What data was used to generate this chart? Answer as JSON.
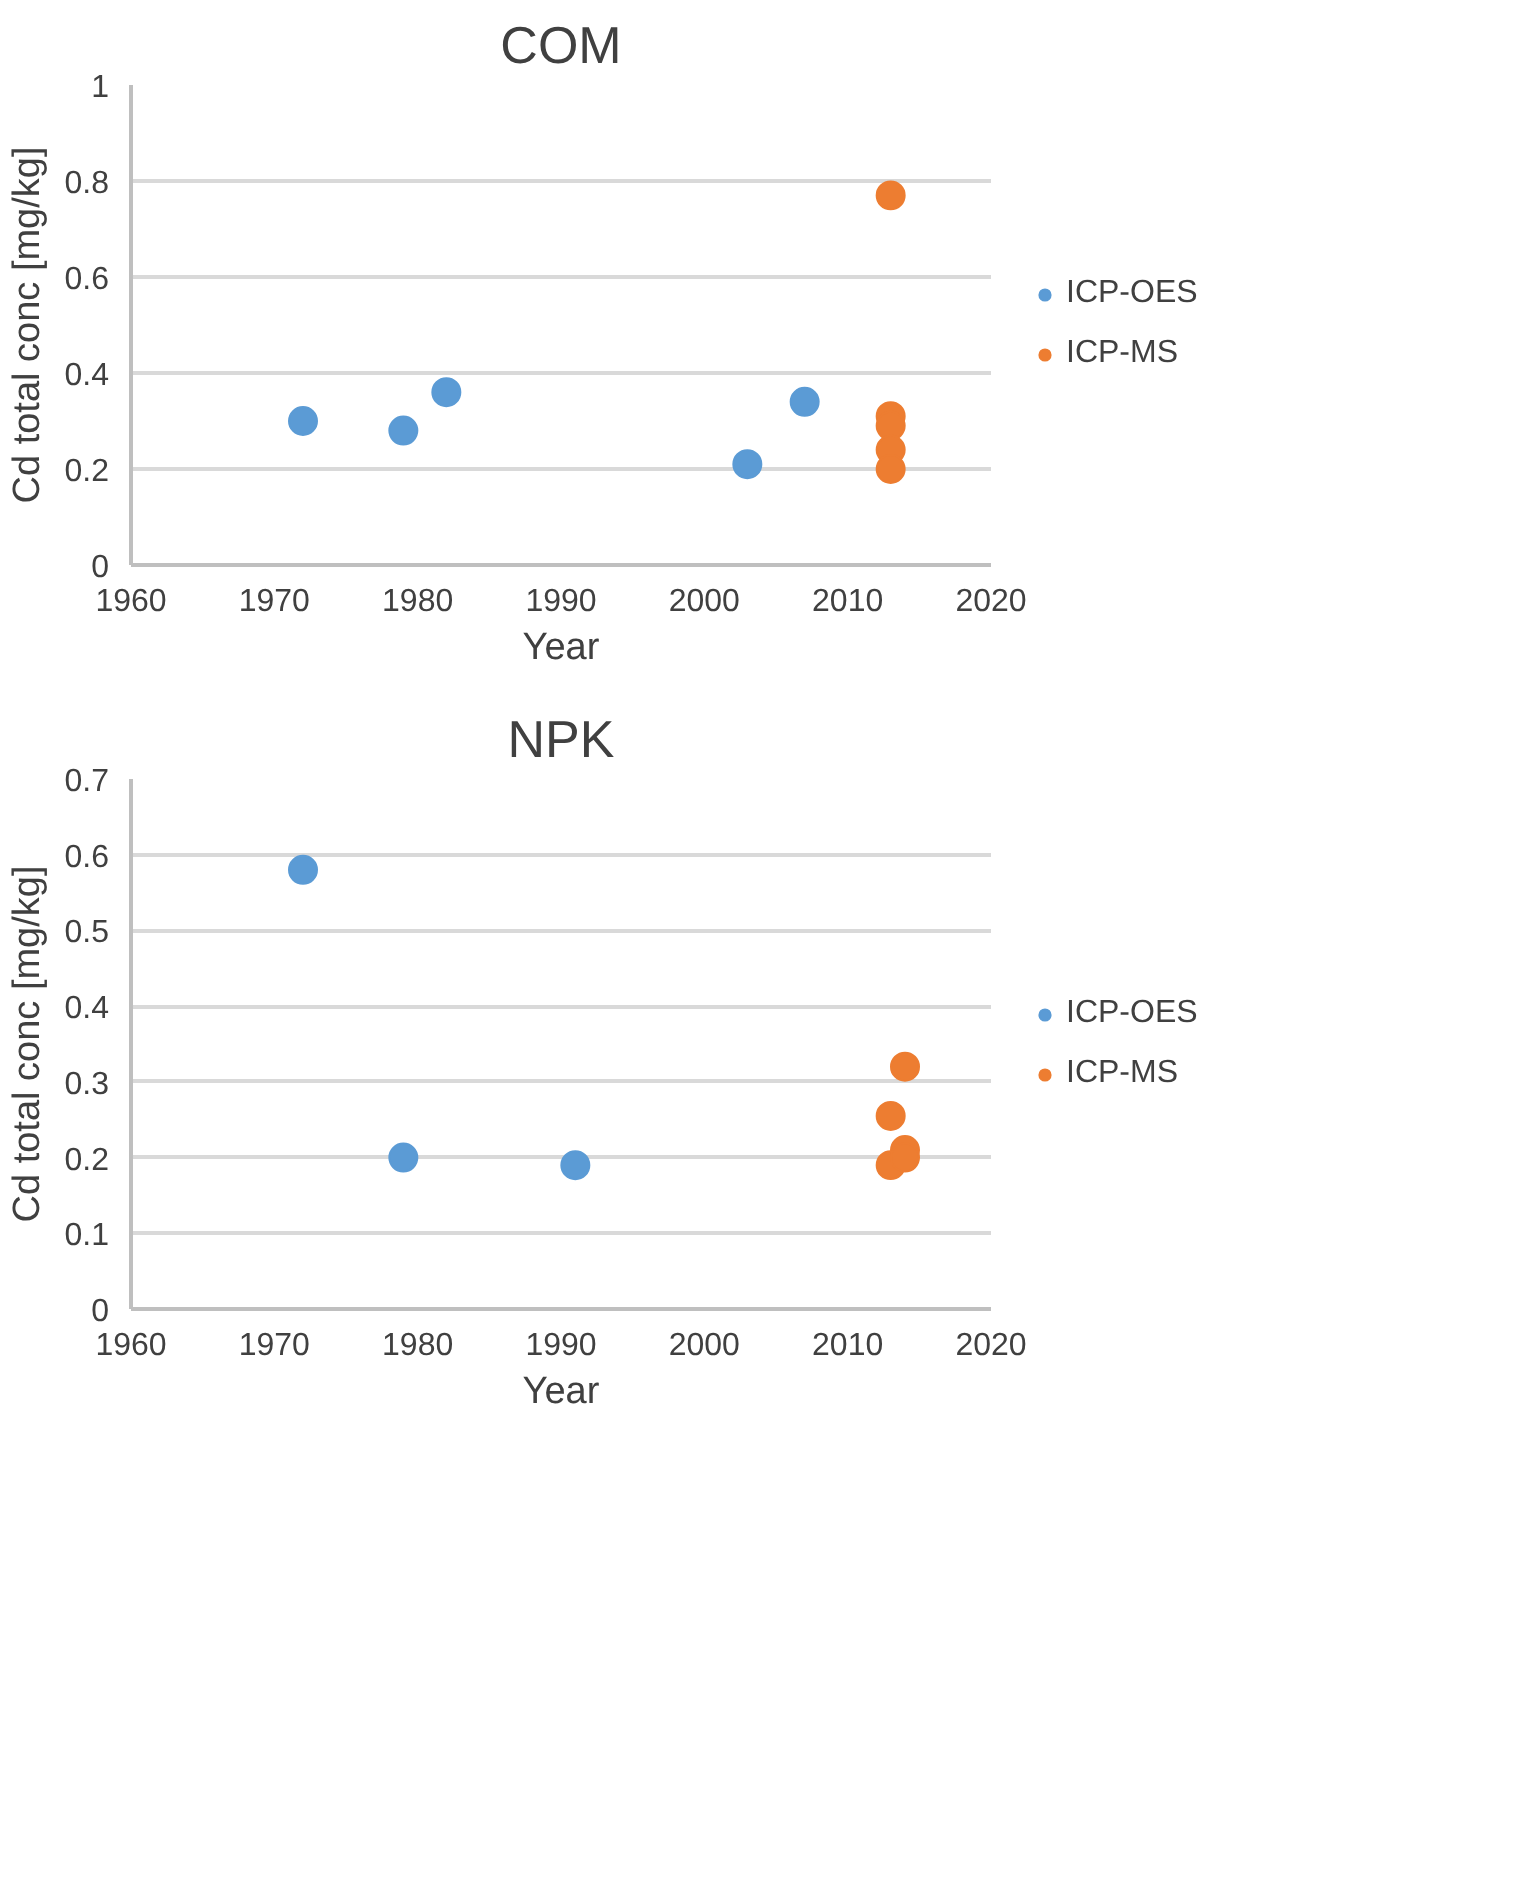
{
  "chart_data": [
    {
      "type": "scatter",
      "title": "COM",
      "xlabel": "Year",
      "ylabel": "Cd total conc [mg/kg]",
      "xlim": [
        1960,
        2020
      ],
      "xticks": [
        1960,
        1970,
        1980,
        1990,
        2000,
        2010,
        2020
      ],
      "ylim": [
        0,
        1
      ],
      "yticks": [
        0,
        0.2,
        0.4,
        0.6,
        0.8,
        1
      ],
      "grid": "y",
      "legend": "right",
      "marker": "circle",
      "series": [
        {
          "name": "ICP-OES",
          "color": "#5b9bd5",
          "x": [
            1972,
            1979,
            1982,
            2003,
            2007
          ],
          "values": [
            0.3,
            0.28,
            0.36,
            0.21,
            0.34
          ]
        },
        {
          "name": "ICP-MS",
          "color": "#ed7d31",
          "x": [
            2013,
            2013,
            2013,
            2013,
            2013
          ],
          "values": [
            0.77,
            0.31,
            0.29,
            0.24,
            0.2
          ]
        }
      ]
    },
    {
      "type": "scatter",
      "title": "NPK",
      "xlabel": "Year",
      "ylabel": "Cd total conc [mg/kg]",
      "xlim": [
        1960,
        2020
      ],
      "xticks": [
        1960,
        1970,
        1980,
        1990,
        2000,
        2010,
        2020
      ],
      "ylim": [
        0,
        0.7
      ],
      "yticks": [
        0,
        0.1,
        0.2,
        0.3,
        0.4,
        0.5,
        0.6,
        0.7
      ],
      "grid": "y",
      "legend": "right",
      "marker": "circle",
      "series": [
        {
          "name": "ICP-OES",
          "color": "#5b9bd5",
          "x": [
            1972,
            1979,
            1991
          ],
          "values": [
            0.58,
            0.2,
            0.19
          ]
        },
        {
          "name": "ICP-MS",
          "color": "#ed7d31",
          "x": [
            2014,
            2013,
            2014,
            2013,
            2014
          ],
          "values": [
            0.32,
            0.255,
            0.21,
            0.19,
            0.2
          ]
        }
      ]
    }
  ]
}
